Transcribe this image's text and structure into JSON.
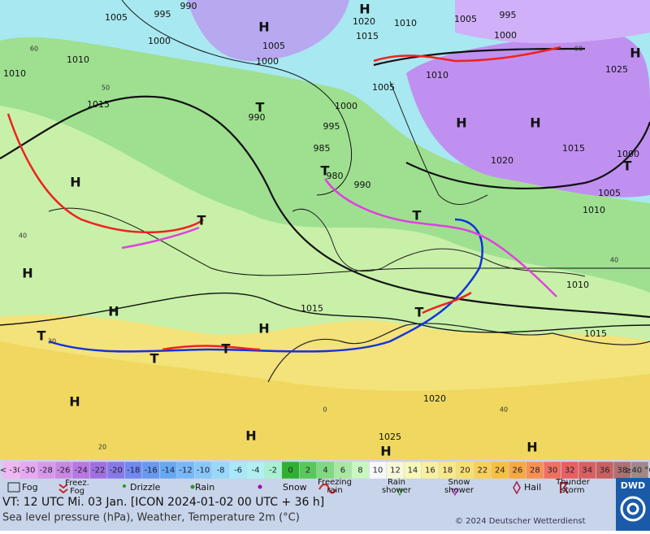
{
  "map": {
    "pressure_labels": [
      "1005",
      "995",
      "990",
      "1000",
      "1010",
      "1010",
      "1015",
      "1005",
      "1000",
      "990",
      "995",
      "1000",
      "985",
      "980",
      "990",
      "1020",
      "1015",
      "1010",
      "1005",
      "1010",
      "1005",
      "995",
      "1000",
      "1025",
      "1015",
      "1020",
      "1000",
      "1005",
      "1010",
      "1010",
      "1015",
      "1015",
      "1020",
      "1025"
    ],
    "highs": [
      "H",
      "H",
      "H",
      "H",
      "H",
      "H",
      "H",
      "H",
      "H",
      "H",
      "H",
      "H",
      "H"
    ],
    "lows": [
      "T",
      "T",
      "T",
      "T",
      "T",
      "T",
      "T",
      "T",
      "T"
    ],
    "temp_labels": [
      "60",
      "50",
      "40",
      "30",
      "20",
      "0",
      "60",
      "40",
      "40"
    ]
  },
  "scale": {
    "first": "< -30",
    "values": [
      -30,
      -28,
      -26,
      -24,
      -22,
      -20,
      -18,
      -16,
      -14,
      -12,
      -10,
      -8,
      -6,
      -4,
      -2,
      0,
      2,
      4,
      6,
      8,
      10,
      12,
      14,
      16,
      18,
      20,
      22,
      24,
      26,
      28,
      30,
      32,
      34,
      36,
      38
    ],
    "last": "≥40 °C",
    "colors": [
      "#f0b8f0",
      "#e8a8f0",
      "#d898e8",
      "#c888e0",
      "#b878e0",
      "#a070e0",
      "#8878e8",
      "#7088f0",
      "#6898f0",
      "#68a8f0",
      "#78b8f8",
      "#88c8f8",
      "#98d8f8",
      "#a8e8f8",
      "#b0f0f0",
      "#a8f0d0",
      "#30b030",
      "#58c858",
      "#80d880",
      "#a8e8a0",
      "#c8f8c0",
      "#f8f8f8",
      "#f8f8d8",
      "#f8f8b8",
      "#f8f0a0",
      "#f8e888",
      "#f8e070",
      "#f8d058",
      "#f8c040",
      "#f8a840",
      "#f89050",
      "#f07060",
      "#e86060",
      "#d86060",
      "#c86060",
      "#b07070",
      "#a08888"
    ]
  },
  "legend": [
    "Fog",
    "Freez. Fog",
    "Drizzle",
    "Rain",
    "Snow",
    "Freezing rain",
    "Rain shower",
    "Snow shower",
    "Hail",
    "Thunder storm"
  ],
  "footer": {
    "valid_time": "VT: 12 UTC Mi.  03 Jan. [ICON 2024-01-02  00 UTC + 36 h]",
    "description": "Sea level pressure (hPa), Weather, Temperature 2m (°C)",
    "copyright": "© 2024 Deutscher Wetterdienst",
    "logo": "DWD"
  }
}
